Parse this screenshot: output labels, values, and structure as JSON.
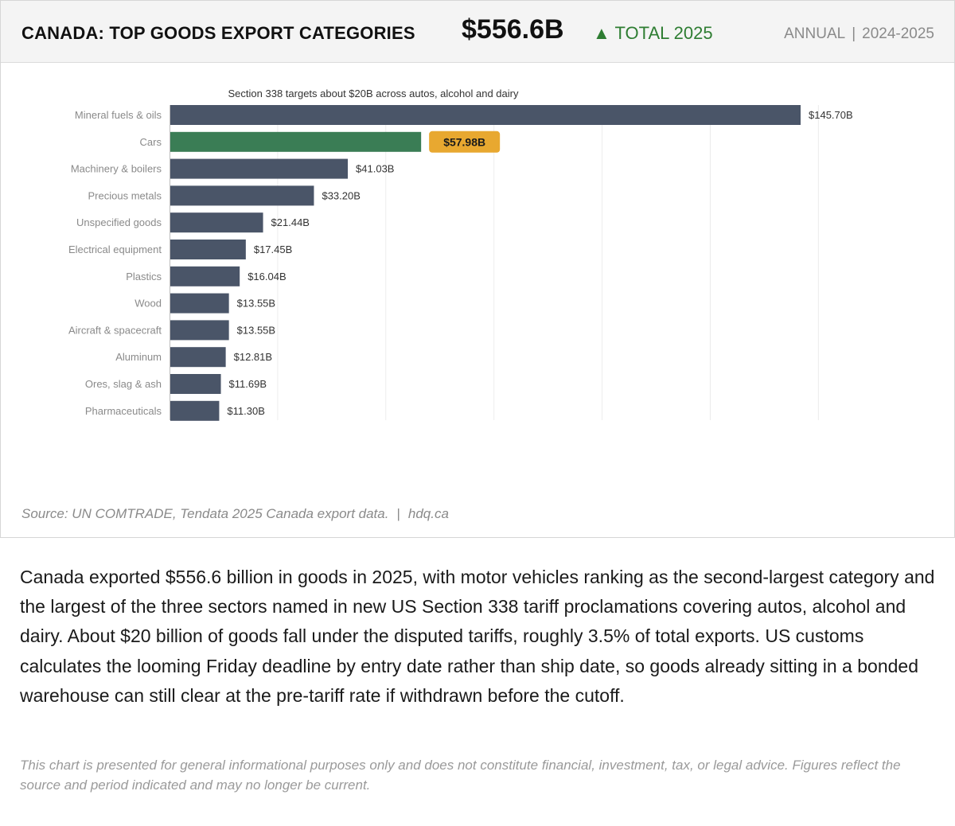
{
  "header": {
    "title": "CANADA: TOP GOODS EXPORT CATEGORIES",
    "total": "$556.6B",
    "delta_arrow": "▲",
    "delta_label": "TOTAL 2025",
    "frequency": "ANNUAL",
    "separator": "|",
    "range": "2024-2025"
  },
  "colors": {
    "bar_default": "#4a5568",
    "bar_highlight": "#3a7d55",
    "badge": "#e8a830",
    "positive": "#2e7d32"
  },
  "chart_data": {
    "type": "bar",
    "orientation": "horizontal",
    "annotation": "Section 338 targets about $20B across autos, alcohol and dairy",
    "categories": [
      "Mineral fuels & oils",
      "Cars",
      "Machinery & boilers",
      "Precious metals",
      "Unspecified goods",
      "Electrical equipment",
      "Plastics",
      "Wood",
      "Aircraft & spacecraft",
      "Aluminum",
      "Ores, slag & ash",
      "Pharmaceuticals"
    ],
    "values": [
      145.7,
      57.98,
      41.03,
      33.2,
      21.44,
      17.45,
      16.04,
      13.55,
      13.55,
      12.81,
      11.69,
      11.3
    ],
    "value_labels": [
      "$145.70B",
      "$57.98B",
      "$41.03B",
      "$33.20B",
      "$21.44B",
      "$17.45B",
      "$16.04B",
      "$13.55B",
      "$13.55B",
      "$12.81B",
      "$11.69B",
      "$11.30B"
    ],
    "highlight_index": 1,
    "xlim": [
      0,
      160
    ],
    "grid": true
  },
  "source": {
    "text": "Source: UN COMTRADE, Tendata 2025 Canada export data.",
    "separator": "|",
    "site": "hdq.ca"
  },
  "description": "Canada exported $556.6 billion in goods in 2025, with motor vehicles ranking as the second-largest category and the largest of the three sectors named in new US Section 338 tariff proclamations covering autos, alcohol and dairy. About $20 billion of goods fall under the disputed tariffs, roughly 3.5% of total exports. US customs calculates the looming Friday deadline by entry date rather than ship date, so goods already sitting in a bonded warehouse can still clear at the pre-tariff rate if withdrawn before the cutoff.",
  "disclaimer": "This chart is presented for general informational purposes only and does not constitute financial, investment, tax, or legal advice. Figures reflect the source and period indicated and may no longer be current."
}
